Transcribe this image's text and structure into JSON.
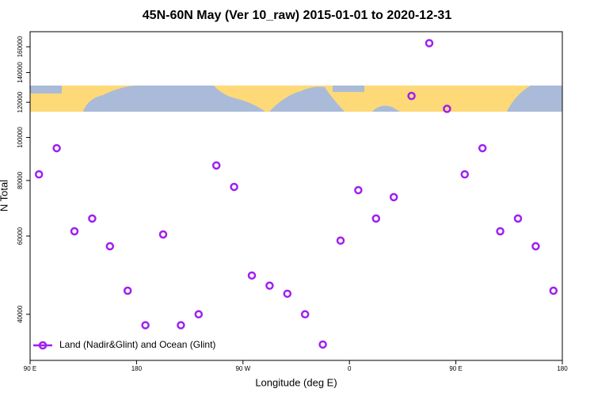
{
  "chart_data": {
    "type": "scatter",
    "title": "45N-60N May (Ver 10_raw)   2015-01-01 to 2020-12-31",
    "x_label": "Longitude (deg E)",
    "y_label": "N Total",
    "log_y": true,
    "xlim": [
      90,
      540
    ],
    "ylim": [
      31500,
      173000
    ],
    "xticks": [
      {
        "value": 90,
        "label": "90 E"
      },
      {
        "value": 180,
        "label": "180"
      },
      {
        "value": 270,
        "label": "90 W"
      },
      {
        "value": 360,
        "label": "0"
      },
      {
        "value": 450,
        "label": "90 E"
      },
      {
        "value": 540,
        "label": "180"
      }
    ],
    "yticks": [
      40000,
      60000,
      80000,
      100000,
      120000,
      140000,
      160000
    ],
    "series": [
      {
        "name": "Land (Nadir&Glint) and Ocean (Glint)",
        "color": "#a020f0",
        "x": [
          97.5,
          112.5,
          127.5,
          142.5,
          157.5,
          172.5,
          187.5,
          202.5,
          217.5,
          232.5,
          247.5,
          262.5,
          277.5,
          292.5,
          307.5,
          322.5,
          337.5,
          352.5,
          367.5,
          382.5,
          397.5,
          412.5,
          427.5,
          442.5,
          457.5,
          472.5,
          487.5,
          502.5,
          517.5,
          532.5
        ],
        "values": [
          82600,
          94600,
          61500,
          65700,
          56900,
          45200,
          37800,
          60500,
          37800,
          40000,
          86500,
          77400,
          48900,
          46400,
          44500,
          40000,
          34200,
          58600,
          76100,
          65700,
          73400,
          124000,
          163000,
          116000,
          82600,
          94600,
          61500,
          65700,
          56900,
          45200
        ]
      }
    ],
    "legend": "bottom-left"
  }
}
